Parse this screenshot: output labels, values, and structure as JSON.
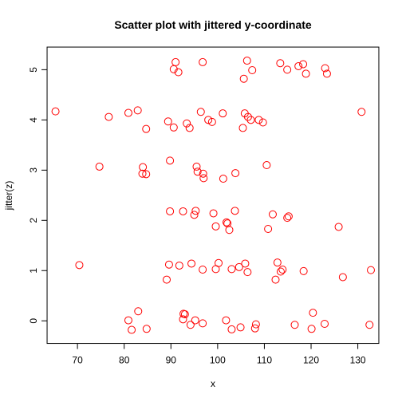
{
  "chart_data": {
    "type": "scatter",
    "title": "Scatter plot with jittered y-coordinate",
    "xlabel": "x",
    "ylabel": "jitter(z)",
    "xlim": [
      63.5,
      134.5
    ],
    "ylim": [
      -0.45,
      5.45
    ],
    "xticks": [
      70,
      80,
      90,
      100,
      110,
      120,
      130
    ],
    "yticks": [
      0,
      1,
      2,
      3,
      4,
      5
    ],
    "grid": false,
    "legend": "none",
    "point_color": "#ff0000",
    "series": [
      {
        "points": [
          [
            83.0,
            0.19
          ],
          [
            80.9,
            0.01
          ],
          [
            81.6,
            -0.18
          ],
          [
            84.8,
            -0.16
          ],
          [
            92.7,
            0.14
          ],
          [
            93.0,
            0.13
          ],
          [
            92.6,
            0.03
          ],
          [
            94.2,
            -0.08
          ],
          [
            95.2,
            0.01
          ],
          [
            96.8,
            -0.05
          ],
          [
            101.8,
            0.01
          ],
          [
            103.0,
            -0.17
          ],
          [
            104.9,
            -0.13
          ],
          [
            108.2,
            -0.07
          ],
          [
            108.0,
            -0.15
          ],
          [
            116.5,
            -0.08
          ],
          [
            120.4,
            0.16
          ],
          [
            120.1,
            -0.16
          ],
          [
            122.9,
            -0.06
          ],
          [
            132.5,
            -0.08
          ],
          [
            70.4,
            1.11
          ],
          [
            89.1,
            0.82
          ],
          [
            89.6,
            1.12
          ],
          [
            91.8,
            1.1
          ],
          [
            94.4,
            1.14
          ],
          [
            96.8,
            1.02
          ],
          [
            99.6,
            1.03
          ],
          [
            100.2,
            1.15
          ],
          [
            103.0,
            1.03
          ],
          [
            104.6,
            1.07
          ],
          [
            105.9,
            1.14
          ],
          [
            106.4,
            0.97
          ],
          [
            112.4,
            0.82
          ],
          [
            112.8,
            1.16
          ],
          [
            113.5,
            0.98
          ],
          [
            113.9,
            1.02
          ],
          [
            118.4,
            0.99
          ],
          [
            126.8,
            0.87
          ],
          [
            132.8,
            1.01
          ],
          [
            89.8,
            2.18
          ],
          [
            92.6,
            2.18
          ],
          [
            95.0,
            2.11
          ],
          [
            95.3,
            2.19
          ],
          [
            99.1,
            2.14
          ],
          [
            99.6,
            1.88
          ],
          [
            101.9,
            1.96
          ],
          [
            102.1,
            1.94
          ],
          [
            102.5,
            1.81
          ],
          [
            103.7,
            2.19
          ],
          [
            110.8,
            1.83
          ],
          [
            111.8,
            2.12
          ],
          [
            114.9,
            2.05
          ],
          [
            115.2,
            2.08
          ],
          [
            125.9,
            1.87
          ],
          [
            74.7,
            3.07
          ],
          [
            84.0,
            3.06
          ],
          [
            83.9,
            2.93
          ],
          [
            84.7,
            2.92
          ],
          [
            89.8,
            3.19
          ],
          [
            95.5,
            3.07
          ],
          [
            95.7,
            2.97
          ],
          [
            96.9,
            2.93
          ],
          [
            97.0,
            2.84
          ],
          [
            101.2,
            2.83
          ],
          [
            103.8,
            2.94
          ],
          [
            110.5,
            3.1
          ],
          [
            65.3,
            4.17
          ],
          [
            76.7,
            4.06
          ],
          [
            80.9,
            4.14
          ],
          [
            82.9,
            4.19
          ],
          [
            84.7,
            3.82
          ],
          [
            89.4,
            3.97
          ],
          [
            90.6,
            3.85
          ],
          [
            93.4,
            3.93
          ],
          [
            94.0,
            3.84
          ],
          [
            96.4,
            4.16
          ],
          [
            98.0,
            4.0
          ],
          [
            98.8,
            3.96
          ],
          [
            101.1,
            4.13
          ],
          [
            105.4,
            3.84
          ],
          [
            105.8,
            4.13
          ],
          [
            106.5,
            4.06
          ],
          [
            107.1,
            4.0
          ],
          [
            108.8,
            4.0
          ],
          [
            109.7,
            3.95
          ],
          [
            130.8,
            4.16
          ],
          [
            90.6,
            5.01
          ],
          [
            91.0,
            5.15
          ],
          [
            91.6,
            4.95
          ],
          [
            96.8,
            5.15
          ],
          [
            105.6,
            4.82
          ],
          [
            106.3,
            5.18
          ],
          [
            107.4,
            4.99
          ],
          [
            113.4,
            5.13
          ],
          [
            114.9,
            5.0
          ],
          [
            117.3,
            5.07
          ],
          [
            118.3,
            5.11
          ],
          [
            118.9,
            4.92
          ],
          [
            123.0,
            5.03
          ],
          [
            123.4,
            4.92
          ]
        ]
      }
    ]
  }
}
